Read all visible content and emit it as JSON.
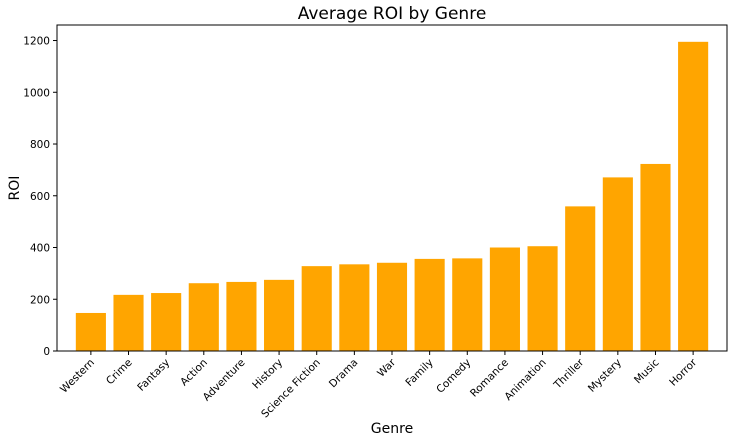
{
  "chart_data": {
    "type": "bar",
    "title": "Average ROI by Genre",
    "xlabel": "Genre",
    "ylabel": "ROI",
    "categories": [
      "Western",
      "Crime",
      "Fantasy",
      "Action",
      "Adventure",
      "History",
      "Science Fiction",
      "Drama",
      "War",
      "Family",
      "Comedy",
      "Romance",
      "Animation",
      "Thriller",
      "Mystery",
      "Music",
      "Horror"
    ],
    "values": [
      147,
      217,
      224,
      262,
      267,
      275,
      328,
      335,
      341,
      356,
      358,
      400,
      405,
      559,
      671,
      723,
      1195
    ],
    "ylim": [
      0,
      1260
    ],
    "yticks": [
      0,
      200,
      400,
      600,
      800,
      1000,
      1200
    ],
    "bar_color": "#FFA500",
    "grid": false,
    "legend": false
  }
}
